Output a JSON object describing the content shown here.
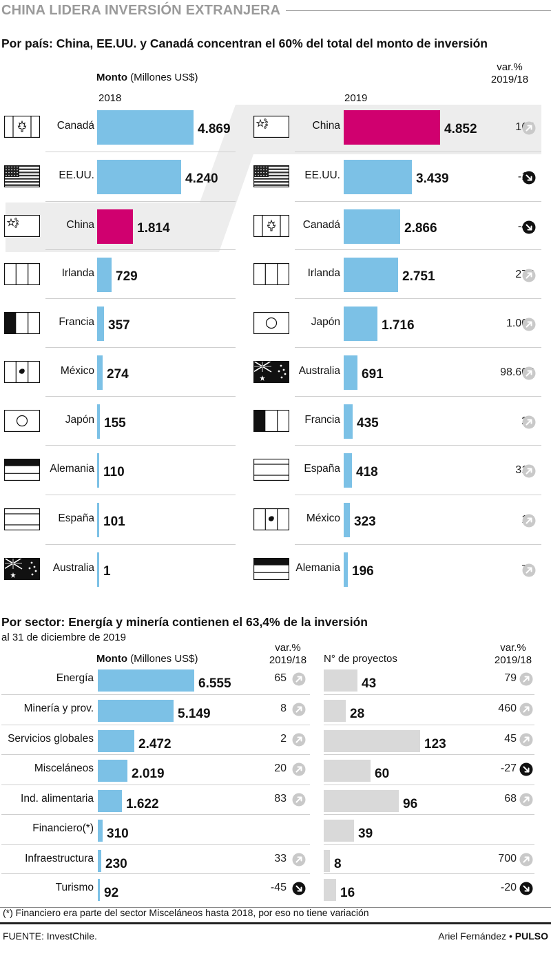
{
  "title": "CHINA LIDERA INVERSIÓN EXTRANJERA",
  "colors": {
    "bar": "#7cc1e6",
    "highlight": "#d0006f",
    "sector_projects": "#d9d9d9",
    "band": "#ededed"
  },
  "country_section": {
    "subtitle": "Por país: China, EE.UU. y Canadá concentran el 60% del total del monto de inversión",
    "monto_label_bold": "Monto",
    "monto_label_unit": "(Millones US$)",
    "var_label_1": "var.%",
    "var_label_2": "2019/18",
    "year_left": "2018",
    "year_right": "2019"
  },
  "sector_section": {
    "subtitle": "Por sector: Energía y minería contienen el 63,4% de la inversión",
    "date_note": "al 31 de diciembre de 2019",
    "monto_label_bold": "Monto",
    "monto_label_unit": "(Millones US$)",
    "var_label_1": "var.%",
    "var_label_2": "2019/18",
    "projects_label": "N° de proyectos",
    "var2_label_1": "var.%",
    "var2_label_2": "2019/18"
  },
  "footnote": "(*) Financiero era parte del sector Misceláneos hasta 2018, por eso no tiene variación",
  "source": "FUENTE: InvestChile.",
  "credit_author": "Ariel Fernández",
  "credit_separator": "•",
  "credit_outlet": "PULSO",
  "chart_data": [
    {
      "type": "bar",
      "title": "Monto (Millones US$) 2018",
      "categories": [
        "Canadá",
        "EE.UU.",
        "China",
        "Irlanda",
        "Francia",
        "México",
        "Japón",
        "Alemania",
        "España",
        "Australia"
      ],
      "values": [
        4869,
        4240,
        1814,
        729,
        357,
        274,
        155,
        110,
        101,
        1
      ],
      "value_labels": [
        "4.869",
        "4.240",
        "1.814",
        "729",
        "357",
        "274",
        "155",
        "110",
        "101",
        "1"
      ],
      "flags": [
        "canada",
        "usa",
        "china",
        "ireland",
        "france",
        "mexico",
        "japan",
        "germany",
        "spain",
        "australia"
      ],
      "highlight": [
        false,
        false,
        true,
        false,
        false,
        false,
        false,
        false,
        false,
        false
      ]
    },
    {
      "type": "bar",
      "title": "Monto (Millones US$) 2019",
      "categories": [
        "China",
        "EE.UU.",
        "Canadá",
        "Irlanda",
        "Japón",
        "Australia",
        "Francia",
        "España",
        "México",
        "Alemania"
      ],
      "values": [
        4852,
        3439,
        2866,
        2751,
        1716,
        691,
        435,
        418,
        323,
        196
      ],
      "value_labels": [
        "4.852",
        "3.439",
        "2.866",
        "2.751",
        "1.716",
        "691",
        "435",
        "418",
        "323",
        "196"
      ],
      "flags": [
        "china",
        "usa",
        "canada",
        "ireland",
        "japan",
        "australia",
        "france",
        "spain",
        "mexico",
        "germany"
      ],
      "highlight": [
        true,
        false,
        false,
        false,
        false,
        false,
        false,
        false,
        false,
        false
      ],
      "var_labels": [
        "167",
        "-19",
        "-41",
        "277",
        "1.008",
        "98.607",
        "22",
        "315",
        "18",
        "78"
      ],
      "var_direction": [
        "up",
        "down",
        "down",
        "up",
        "up",
        "up",
        "up",
        "up",
        "up",
        "up"
      ]
    },
    {
      "type": "bar",
      "title": "Monto (Millones US$)",
      "categories": [
        "Energía",
        "Minería y prov.",
        "Servicios globales",
        "Misceláneos",
        "Ind. alimentaria",
        "Financiero(*)",
        "Infraestructura",
        "Turismo"
      ],
      "values": [
        6555,
        5149,
        2472,
        2019,
        1622,
        310,
        230,
        92
      ],
      "value_labels": [
        "6.555",
        "5.149",
        "2.472",
        "2.019",
        "1.622",
        "310",
        "230",
        "92"
      ],
      "var_labels": [
        "65",
        "8",
        "2",
        "20",
        "83",
        "",
        "33",
        "-45"
      ],
      "var_direction": [
        "up",
        "up",
        "up",
        "up",
        "up",
        "",
        "up",
        "down"
      ]
    },
    {
      "type": "bar",
      "title": "N° de proyectos",
      "categories": [
        "Energía",
        "Minería y prov.",
        "Servicios globales",
        "Misceláneos",
        "Ind. alimentaria",
        "Financiero(*)",
        "Infraestructura",
        "Turismo"
      ],
      "values": [
        43,
        28,
        123,
        60,
        96,
        39,
        8,
        16
      ],
      "value_labels": [
        "43",
        "28",
        "123",
        "60",
        "96",
        "39",
        "8",
        "16"
      ],
      "var_labels": [
        "79",
        "460",
        "45",
        "-27",
        "68",
        "",
        "700",
        "-20"
      ],
      "var_direction": [
        "up",
        "up",
        "up",
        "down",
        "up",
        "",
        "up",
        "down"
      ]
    }
  ]
}
